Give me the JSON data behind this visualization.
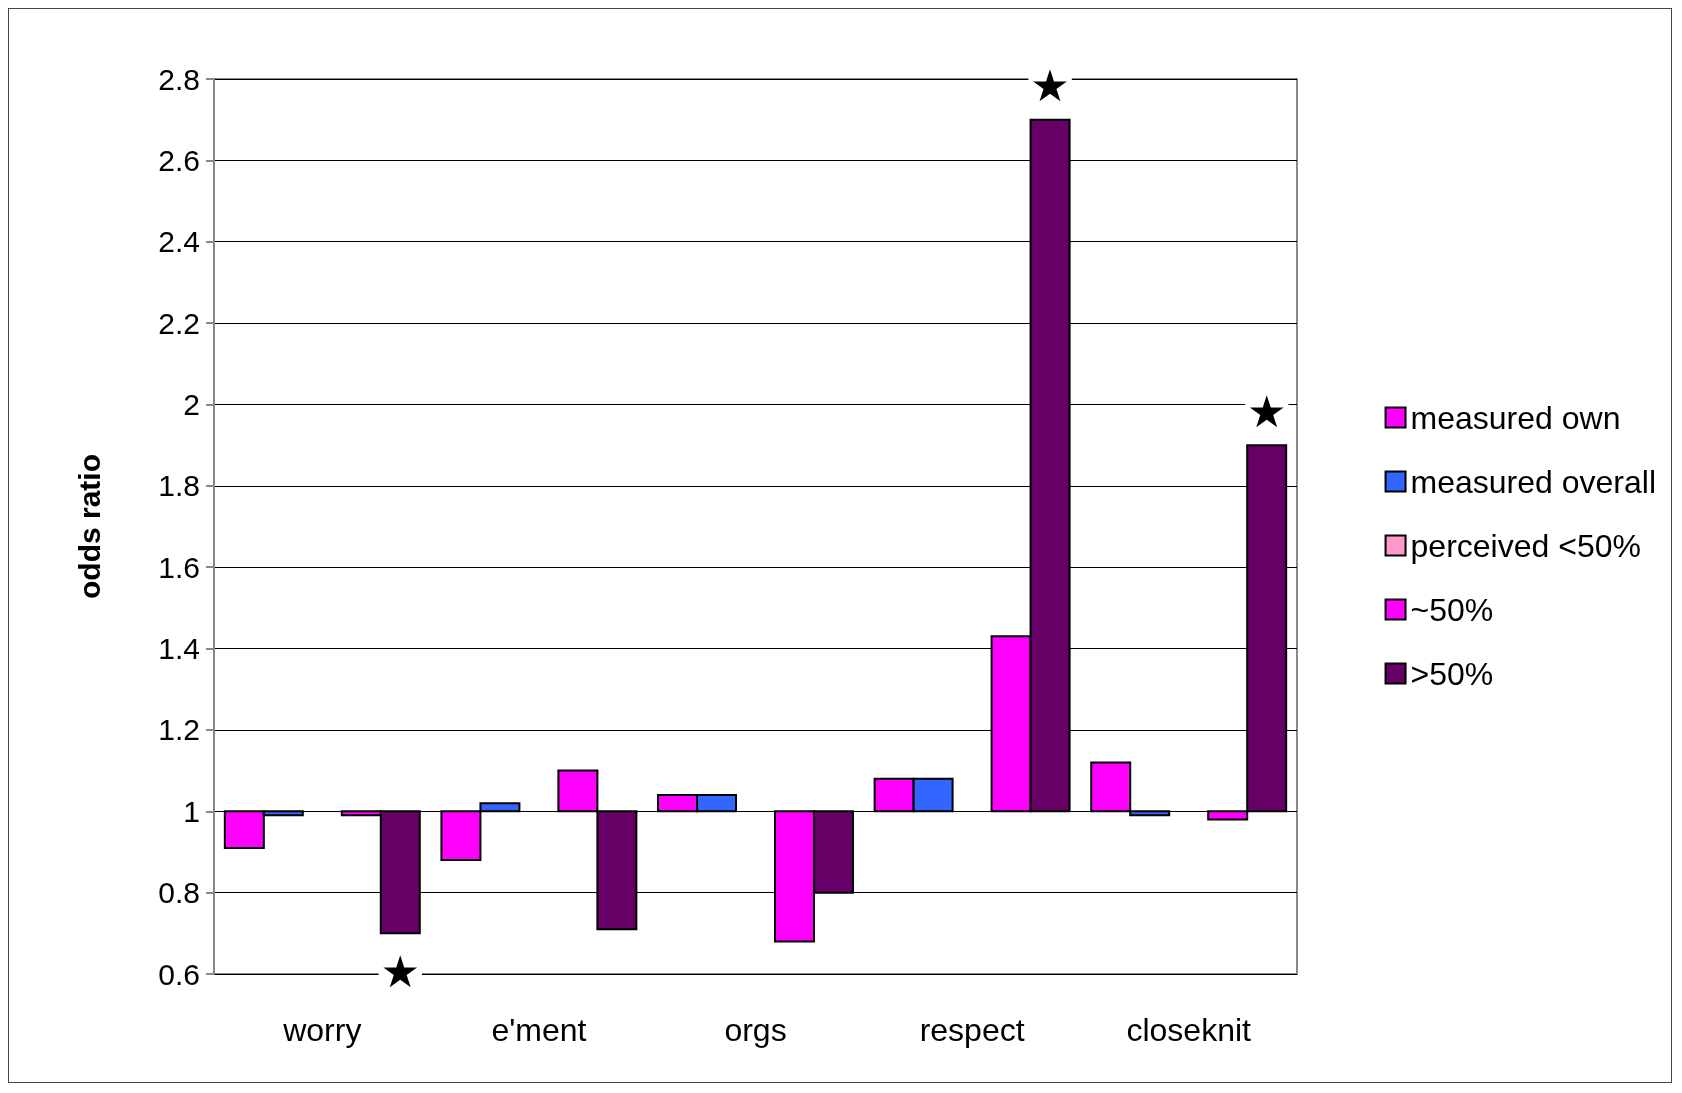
{
  "chart_data": {
    "type": "bar",
    "ylabel": "odds ratio",
    "categories": [
      "worry",
      "e'ment",
      "orgs",
      "respect",
      "closeknit"
    ],
    "series": [
      {
        "name": "measured own",
        "color": "#ff00ff",
        "base": [
          1,
          1,
          1,
          1,
          1
        ],
        "values": [
          -0.09,
          -0.12,
          0.04,
          0.08,
          0.12
        ]
      },
      {
        "name": "measured overall",
        "color": "#3366ff",
        "base": [
          1,
          1,
          1,
          1,
          1
        ],
        "values": [
          -0.01,
          0.02,
          0.04,
          0.08,
          -0.01
        ]
      },
      {
        "name": "perceived <50%",
        "color": "#ff99cc",
        "values": [
          null,
          null,
          null,
          null,
          null
        ]
      },
      {
        "name": "~50%",
        "color": "#ff00ff",
        "base": [
          1,
          1,
          1,
          1,
          1
        ],
        "values": [
          -0.01,
          0.1,
          -0.32,
          0.43,
          -0.02
        ]
      },
      {
        "name": ">50%",
        "color": "#660066",
        "base": [
          1,
          1,
          1,
          1,
          1
        ],
        "values": [
          -0.3,
          -0.29,
          -0.2,
          1.7,
          0.9
        ]
      }
    ],
    "ylim": [
      0.6,
      2.8
    ],
    "yticks": [
      0.6,
      0.8,
      1,
      1.2,
      1.4,
      1.6,
      1.8,
      2,
      2.2,
      2.4,
      2.6,
      2.8
    ],
    "annotations": [
      "★",
      "★",
      "★"
    ],
    "grid": "y",
    "legend": "right"
  }
}
